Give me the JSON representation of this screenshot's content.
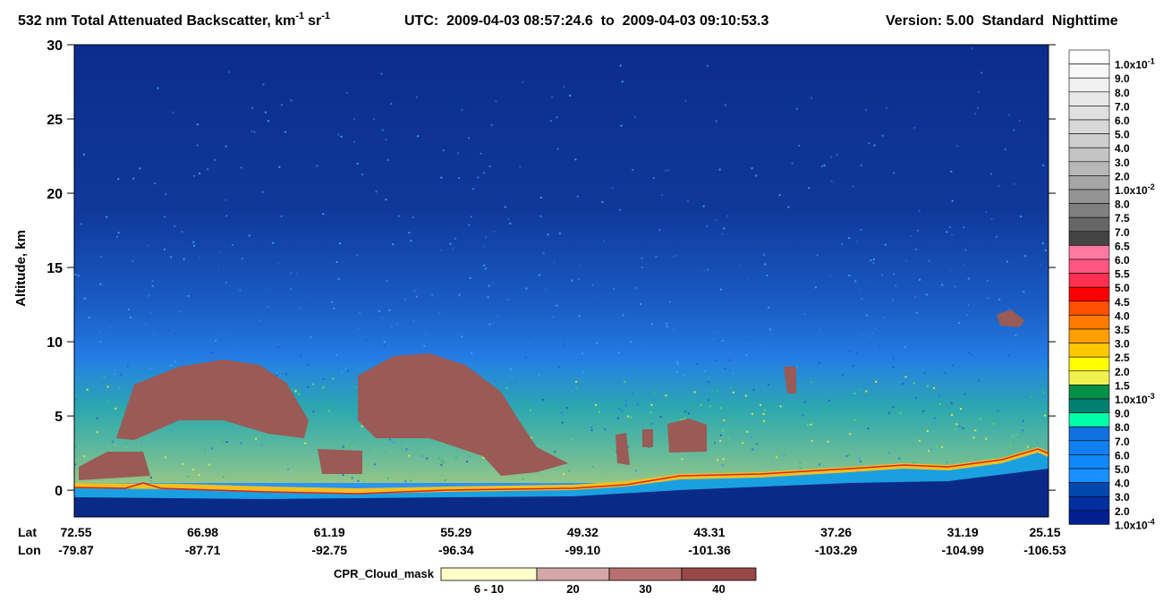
{
  "chart_data": {
    "type": "heatmap",
    "title": {
      "main": "532 nm Total Attenuated Backscatter, km",
      "unit_exp1": "-1",
      "unit2": "sr",
      "unit_exp2": "-1",
      "time": "UTC:  2009-04-03 08:57:24.6  to  2009-04-03 09:10:53.3",
      "version": "Version: 5.00  Standard  Nighttime"
    },
    "y_label": "Altitude, km",
    "ylim": [
      -1.8,
      30
    ],
    "yticks": [
      0,
      5,
      10,
      15,
      20,
      25,
      30
    ],
    "x_row_labels": [
      "Lat",
      "Lon"
    ],
    "lat": [
      "72.55",
      "66.98",
      "61.19",
      "55.29",
      "49.32",
      "43.31",
      "37.26",
      "31.19",
      "25.15"
    ],
    "lon": [
      "-79.87",
      "-87.71",
      "-92.75",
      "-96.34",
      "-99.10",
      "-101.36",
      "-103.29",
      "-104.99",
      "-106.53"
    ],
    "colorbar": {
      "labels": [
        {
          "text": "1.0x10",
          "sup": "-1"
        },
        "9.0",
        "8.0",
        "7.0",
        "6.0",
        "5.0",
        "4.0",
        "3.0",
        "2.0",
        {
          "text": "1.0x10",
          "sup": "-2"
        },
        "8.0",
        "7.5",
        "7.0",
        "6.5",
        "6.0",
        "5.5",
        "5.0",
        "4.5",
        "4.0",
        "3.5",
        "3.0",
        "2.5",
        "2.0",
        "1.5",
        {
          "text": "1.0x10",
          "sup": "-3"
        },
        "9.0",
        "8.0",
        "7.0",
        "6.0",
        "5.0",
        "4.0",
        "3.0",
        "2.0",
        {
          "text": "1.0x10",
          "sup": "-4"
        }
      ],
      "colors": [
        "#ffffff",
        "#f8f8f8",
        "#f0f0f0",
        "#e8e8e8",
        "#e0e0e0",
        "#d8d8d8",
        "#cecece",
        "#c4c4c4",
        "#b8b8b8",
        "#a6a6a6",
        "#949494",
        "#808080",
        "#666666",
        "#444444",
        "#ff7aa0",
        "#ff5580",
        "#ff3050",
        "#ff0000",
        "#ff5000",
        "#ff7a00",
        "#ffa000",
        "#ffc800",
        "#ffff00",
        "#f0f050",
        "#009048",
        "#008070",
        "#00ffa8",
        "#1070e0",
        "#1080f0",
        "#1088f8",
        "#1890ff",
        "#0048b0",
        "#0030a0",
        "#002090"
      ]
    },
    "cloud_mask": {
      "title": "CPR_Cloud_mask",
      "labels": [
        "6 - 10",
        "20",
        "30",
        "40"
      ],
      "colors": [
        "#ffffc8",
        "#d4a8a8",
        "#b87070",
        "#984846"
      ]
    }
  }
}
